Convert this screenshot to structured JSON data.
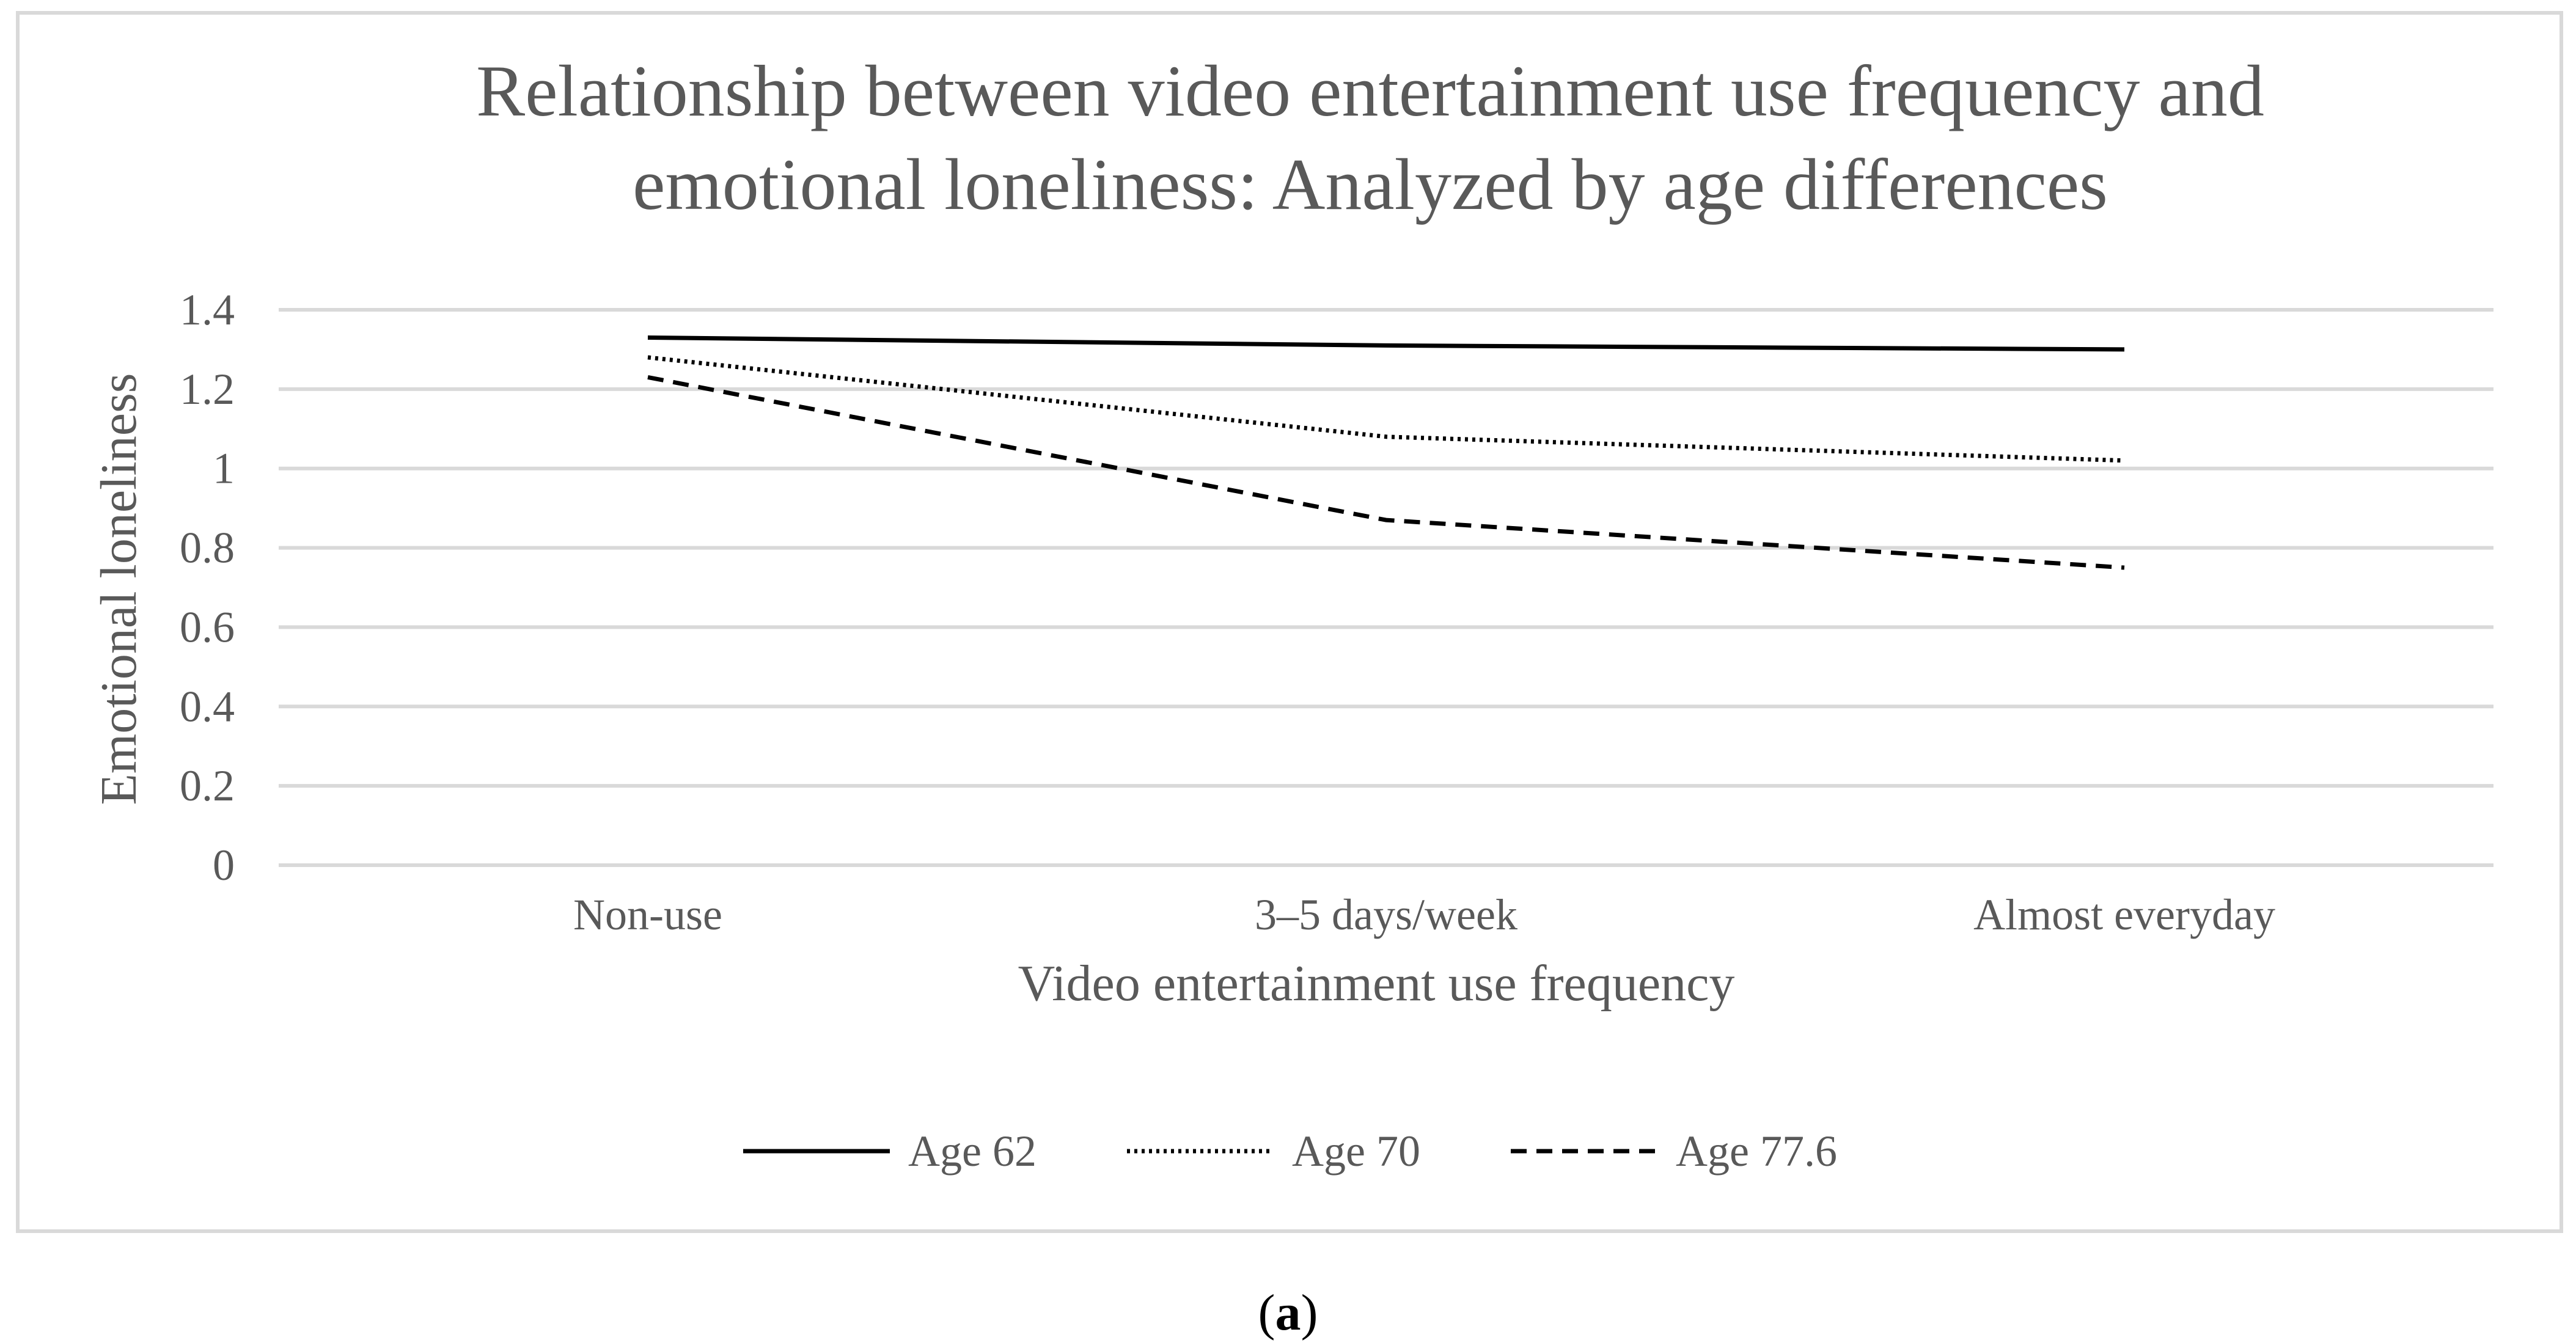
{
  "chart_data": {
    "type": "line",
    "title": [
      "Relationship between video entertainment use frequency and",
      "emotional loneliness: Analyzed by age differences"
    ],
    "xlabel": "Video entertainment use frequency",
    "ylabel": "Emotional loneliness",
    "categories": [
      "Non-use",
      "3–5 days/week",
      "Almost everyday"
    ],
    "ylim": [
      0,
      1.4
    ],
    "yticks": [
      "0",
      "0.2",
      "0.4",
      "0.6",
      "0.8",
      "1",
      "1.2",
      "1.4"
    ],
    "grid": true,
    "legend_position": "bottom",
    "series": [
      {
        "name": "Age 62",
        "values": [
          1.33,
          1.31,
          1.3
        ],
        "dash": "solid",
        "color": "#000000"
      },
      {
        "name": "Age 70",
        "values": [
          1.28,
          1.08,
          1.02
        ],
        "dash": "dotted",
        "color": "#000000"
      },
      {
        "name": "Age 77.6",
        "values": [
          1.23,
          0.87,
          0.75
        ],
        "dash": "dashed",
        "color": "#000000"
      }
    ]
  },
  "caption": {
    "open": "(",
    "letter": "a",
    "close": ")"
  }
}
